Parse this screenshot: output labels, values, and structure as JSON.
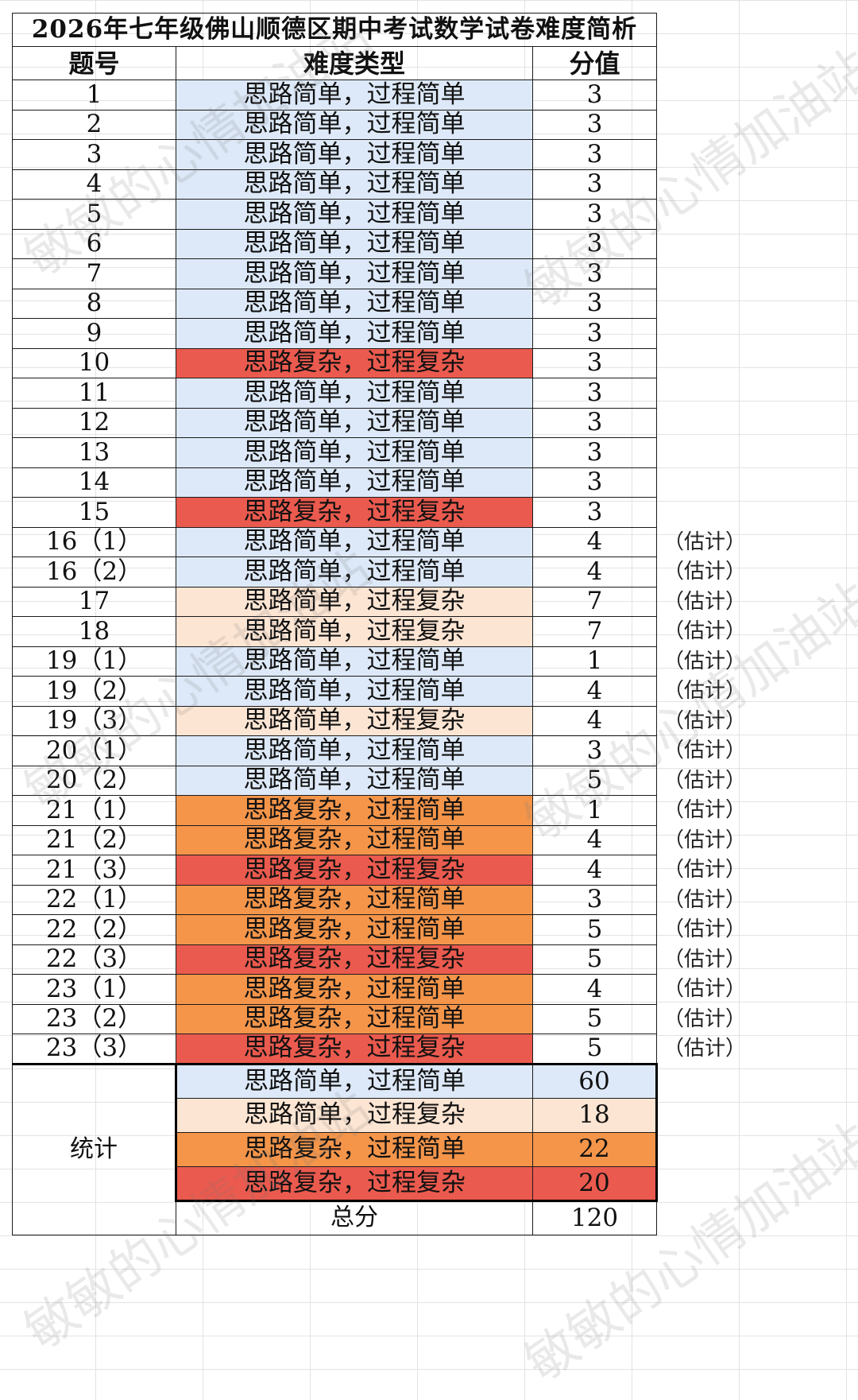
{
  "title": "2026年七年级佛山顺德区期中考试数学试卷难度简析",
  "headers": {
    "number": "题号",
    "type": "难度类型",
    "score": "分值"
  },
  "types": {
    "ss": "思路简单，过程简单",
    "sc": "思路简单，过程复杂",
    "cs": "思路复杂，过程简单",
    "cc": "思路复杂，过程复杂"
  },
  "estimate_note": "（估计）",
  "rows": [
    {
      "no": "1",
      "type": "ss",
      "score": "3",
      "note": false
    },
    {
      "no": "2",
      "type": "ss",
      "score": "3",
      "note": false
    },
    {
      "no": "3",
      "type": "ss",
      "score": "3",
      "note": false
    },
    {
      "no": "4",
      "type": "ss",
      "score": "3",
      "note": false
    },
    {
      "no": "5",
      "type": "ss",
      "score": "3",
      "note": false
    },
    {
      "no": "6",
      "type": "ss",
      "score": "3",
      "note": false
    },
    {
      "no": "7",
      "type": "ss",
      "score": "3",
      "note": false
    },
    {
      "no": "8",
      "type": "ss",
      "score": "3",
      "note": false
    },
    {
      "no": "9",
      "type": "ss",
      "score": "3",
      "note": false
    },
    {
      "no": "10",
      "type": "cc",
      "score": "3",
      "note": false
    },
    {
      "no": "11",
      "type": "ss",
      "score": "3",
      "note": false
    },
    {
      "no": "12",
      "type": "ss",
      "score": "3",
      "note": false
    },
    {
      "no": "13",
      "type": "ss",
      "score": "3",
      "note": false
    },
    {
      "no": "14",
      "type": "ss",
      "score": "3",
      "note": false
    },
    {
      "no": "15",
      "type": "cc",
      "score": "3",
      "note": false
    },
    {
      "no": "16（1）",
      "type": "ss",
      "score": "4",
      "note": true
    },
    {
      "no": "16（2）",
      "type": "ss",
      "score": "4",
      "note": true
    },
    {
      "no": "17",
      "type": "sc",
      "score": "7",
      "note": true
    },
    {
      "no": "18",
      "type": "sc",
      "score": "7",
      "note": true
    },
    {
      "no": "19（1）",
      "type": "ss",
      "score": "1",
      "note": true
    },
    {
      "no": "19（2）",
      "type": "ss",
      "score": "4",
      "note": true
    },
    {
      "no": "19（3）",
      "type": "sc",
      "score": "4",
      "note": true
    },
    {
      "no": "20（1）",
      "type": "ss",
      "score": "3",
      "note": true
    },
    {
      "no": "20（2）",
      "type": "ss",
      "score": "5",
      "note": true
    },
    {
      "no": "21（1）",
      "type": "cs",
      "score": "1",
      "note": true
    },
    {
      "no": "21（2）",
      "type": "cs",
      "score": "4",
      "note": true
    },
    {
      "no": "21（3）",
      "type": "cc",
      "score": "4",
      "note": true
    },
    {
      "no": "22（1）",
      "type": "cs",
      "score": "3",
      "note": true
    },
    {
      "no": "22（2）",
      "type": "cs",
      "score": "5",
      "note": true
    },
    {
      "no": "22（3）",
      "type": "cc",
      "score": "5",
      "note": true
    },
    {
      "no": "23（1）",
      "type": "cs",
      "score": "4",
      "note": true
    },
    {
      "no": "23（2）",
      "type": "cs",
      "score": "5",
      "note": true
    },
    {
      "no": "23（3）",
      "type": "cc",
      "score": "5",
      "note": true
    }
  ],
  "stats": {
    "label": "统计",
    "items": [
      {
        "type": "ss",
        "value": "60"
      },
      {
        "type": "sc",
        "value": "18"
      },
      {
        "type": "cs",
        "value": "22"
      },
      {
        "type": "cc",
        "value": "20"
      }
    ],
    "total_label": "总分",
    "total_value": "120"
  },
  "watermark": "敏敏的心情加油站",
  "colors": {
    "ss": "#dde9f8",
    "sc": "#fde5d3",
    "cs": "#f4954a",
    "cc": "#eb5a4e"
  }
}
